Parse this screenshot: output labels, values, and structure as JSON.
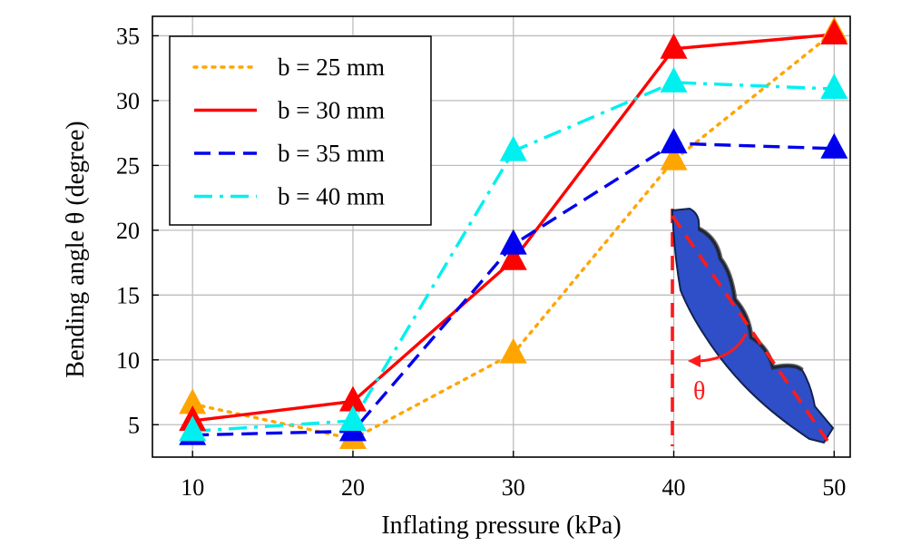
{
  "chart_data": {
    "type": "line",
    "xlabel": "Inflating pressure (kPa)",
    "ylabel": "Bending angle θ (degree)",
    "x": [
      10,
      20,
      30,
      40,
      50
    ],
    "xlim": [
      7.5,
      51
    ],
    "ylim": [
      2.5,
      36.5
    ],
    "xticks": [
      10,
      20,
      30,
      40,
      50
    ],
    "yticks": [
      5,
      10,
      15,
      20,
      25,
      30,
      35
    ],
    "grid": true,
    "legend_position": "top-left",
    "marker": "triangle",
    "series": [
      {
        "name": "b = 25 mm",
        "values": [
          6.6,
          3.9,
          10.5,
          25.4,
          35.3
        ],
        "color": "#ffa500",
        "dash": "dotted"
      },
      {
        "name": "b = 30 mm",
        "values": [
          5.3,
          6.8,
          17.7,
          34.0,
          35.1
        ],
        "color": "#ff0000",
        "dash": "solid"
      },
      {
        "name": "b = 35 mm",
        "values": [
          4.2,
          4.5,
          18.9,
          26.7,
          26.3
        ],
        "color": "#0000ee",
        "dash": "dashed"
      },
      {
        "name": "b = 40 mm",
        "values": [
          4.5,
          5.3,
          26.1,
          31.4,
          30.9
        ],
        "color": "#00f0f0",
        "dash": "dashdot"
      }
    ],
    "inset": {
      "description_icon": "bent-actuator-icon",
      "angle_label": "θ",
      "angle_color": "#ff1a1a"
    }
  }
}
